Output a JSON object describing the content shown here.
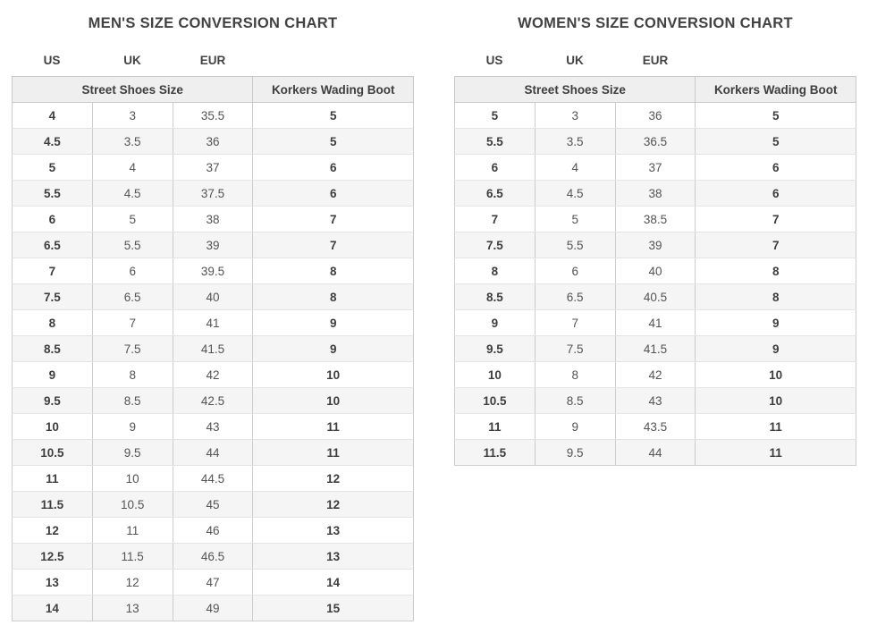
{
  "colors": {
    "page_background": "#ffffff",
    "header_cell_background": "#efefef",
    "striped_row_background": "#f5f5f5",
    "table_border": "#c9c9c9",
    "row_divider": "#e4e4e4",
    "title_text": "#424242",
    "bold_cell_text": "#3e3e3e",
    "regular_cell_text": "#545454"
  },
  "chart_data": [
    {
      "type": "table",
      "title": "MEN'S SIZE CONVERSION CHART",
      "system_labels": [
        "US",
        "UK",
        "EUR"
      ],
      "group_headers": [
        "Street Shoes Size",
        "Korkers Wading Boot"
      ],
      "columns": [
        "US",
        "UK",
        "EUR",
        "Korkers Wading Boot"
      ],
      "rows": [
        [
          "4",
          "3",
          "35.5",
          "5"
        ],
        [
          "4.5",
          "3.5",
          "36",
          "5"
        ],
        [
          "5",
          "4",
          "37",
          "6"
        ],
        [
          "5.5",
          "4.5",
          "37.5",
          "6"
        ],
        [
          "6",
          "5",
          "38",
          "7"
        ],
        [
          "6.5",
          "5.5",
          "39",
          "7"
        ],
        [
          "7",
          "6",
          "39.5",
          "8"
        ],
        [
          "7.5",
          "6.5",
          "40",
          "8"
        ],
        [
          "8",
          "7",
          "41",
          "9"
        ],
        [
          "8.5",
          "7.5",
          "41.5",
          "9"
        ],
        [
          "9",
          "8",
          "42",
          "10"
        ],
        [
          "9.5",
          "8.5",
          "42.5",
          "10"
        ],
        [
          "10",
          "9",
          "43",
          "11"
        ],
        [
          "10.5",
          "9.5",
          "44",
          "11"
        ],
        [
          "11",
          "10",
          "44.5",
          "12"
        ],
        [
          "11.5",
          "10.5",
          "45",
          "12"
        ],
        [
          "12",
          "11",
          "46",
          "13"
        ],
        [
          "12.5",
          "11.5",
          "46.5",
          "13"
        ],
        [
          "13",
          "12",
          "47",
          "14"
        ],
        [
          "14",
          "13",
          "49",
          "15"
        ]
      ]
    },
    {
      "type": "table",
      "title": "WOMEN'S SIZE CONVERSION CHART",
      "system_labels": [
        "US",
        "UK",
        "EUR"
      ],
      "group_headers": [
        "Street Shoes Size",
        "Korkers Wading Boot"
      ],
      "columns": [
        "US",
        "UK",
        "EUR",
        "Korkers Wading Boot"
      ],
      "rows": [
        [
          "5",
          "3",
          "36",
          "5"
        ],
        [
          "5.5",
          "3.5",
          "36.5",
          "5"
        ],
        [
          "6",
          "4",
          "37",
          "6"
        ],
        [
          "6.5",
          "4.5",
          "38",
          "6"
        ],
        [
          "7",
          "5",
          "38.5",
          "7"
        ],
        [
          "7.5",
          "5.5",
          "39",
          "7"
        ],
        [
          "8",
          "6",
          "40",
          "8"
        ],
        [
          "8.5",
          "6.5",
          "40.5",
          "8"
        ],
        [
          "9",
          "7",
          "41",
          "9"
        ],
        [
          "9.5",
          "7.5",
          "41.5",
          "9"
        ],
        [
          "10",
          "8",
          "42",
          "10"
        ],
        [
          "10.5",
          "8.5",
          "43",
          "10"
        ],
        [
          "11",
          "9",
          "43.5",
          "11"
        ],
        [
          "11.5",
          "9.5",
          "44",
          "11"
        ]
      ]
    }
  ]
}
